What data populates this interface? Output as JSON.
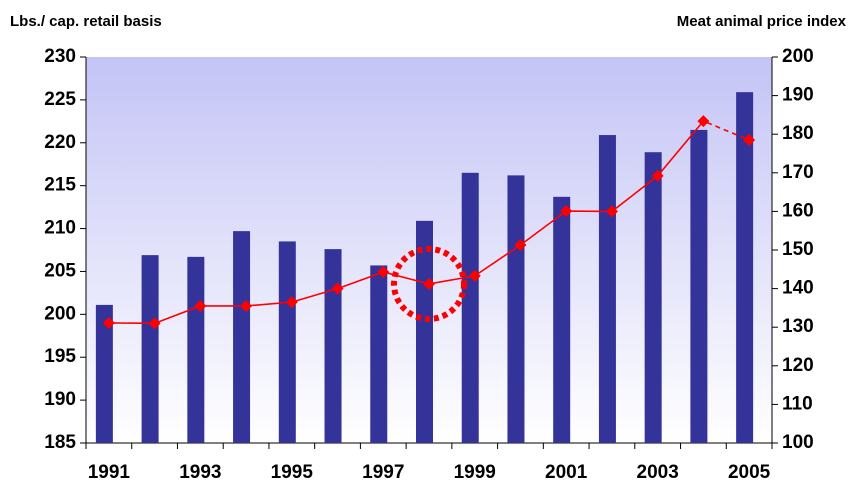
{
  "chart_data": {
    "type": "bar_line",
    "y_label": "Lbs./ cap. retail basis",
    "y2_label": "Meat animal price index",
    "categories": [
      "1991",
      null,
      "1993",
      null,
      "1995",
      null,
      "1997",
      null,
      "1999",
      null,
      "2001",
      null,
      "2003",
      null,
      "2005"
    ],
    "series": [
      {
        "type": "bar",
        "color": "#333399",
        "values": [
          201.1,
          206.9,
          206.7,
          209.7,
          208.5,
          207.6,
          205.7,
          210.9,
          216.5,
          216.2,
          213.7,
          220.9,
          218.9,
          221.5,
          225.9
        ]
      },
      {
        "type": "line",
        "axis": "y2",
        "color": "#ff0000",
        "values": [
          131.1,
          131,
          135.5,
          135.5,
          136.5,
          140,
          144.3,
          141.2,
          143.3,
          151.3,
          160.1,
          160,
          169.2,
          183.4,
          178.5
        ]
      }
    ],
    "ylim": [
      185,
      230
    ],
    "yticks": [
      185,
      190,
      195,
      200,
      205,
      210,
      215,
      220,
      225,
      230
    ],
    "y2lim": [
      100,
      200
    ],
    "y2ticks": [
      100,
      110,
      120,
      130,
      140,
      150,
      160,
      170,
      180,
      190,
      200
    ]
  }
}
